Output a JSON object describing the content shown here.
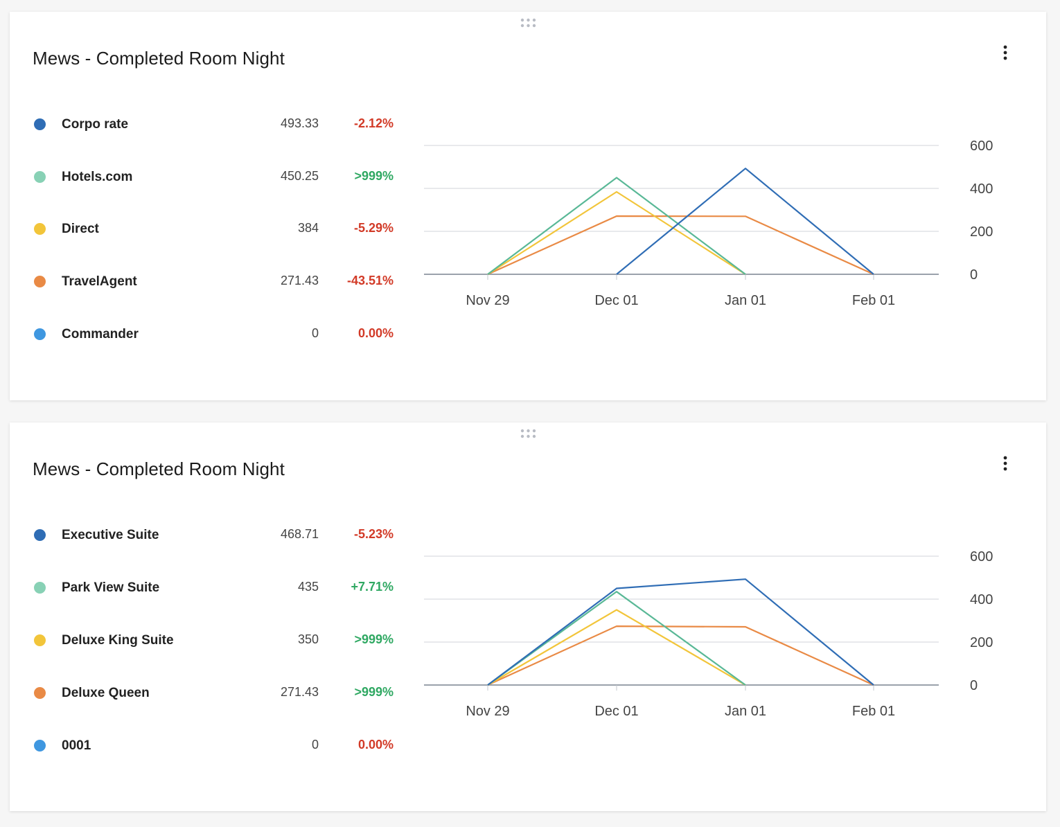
{
  "cards": [
    {
      "title": "Mews - Completed Room Night",
      "legend": [
        {
          "name": "Corpo rate",
          "value": "493.33",
          "change": "-2.12%",
          "trend": "neg",
          "color": "#2f6db5"
        },
        {
          "name": "Hotels.com",
          "value": "450.25",
          "change": ">999%",
          "trend": "pos",
          "color": "#88d1b5"
        },
        {
          "name": "Direct",
          "value": "384",
          "change": "-5.29%",
          "trend": "neg",
          "color": "#f2c53a"
        },
        {
          "name": "TravelAgent",
          "value": "271.43",
          "change": "-43.51%",
          "trend": "neg",
          "color": "#e98a45"
        },
        {
          "name": "Commander",
          "value": "0",
          "change": "0.00%",
          "trend": "neg",
          "color": "#3f97e0"
        }
      ],
      "chart_data": {
        "type": "line",
        "x": [
          "Nov 29",
          "Dec 01",
          "Jan 01",
          "Feb 01"
        ],
        "y_ticks": [
          "600",
          "400",
          "200",
          "0"
        ],
        "ylim": [
          0,
          600
        ],
        "grid": true,
        "y_axis_side": "right",
        "series": [
          {
            "name": "Corpo rate",
            "color": "#2f6db5",
            "values": [
              null,
              0,
              493,
              0
            ]
          },
          {
            "name": "Hotels.com",
            "color": "#59b896",
            "values": [
              0,
              450,
              0,
              null
            ]
          },
          {
            "name": "Direct",
            "color": "#f2c53a",
            "values": [
              0,
              384,
              0,
              null
            ]
          },
          {
            "name": "TravelAgent",
            "color": "#e98a45",
            "values": [
              0,
              271,
              270,
              0
            ]
          }
        ]
      }
    },
    {
      "title": "Mews - Completed Room Night",
      "legend": [
        {
          "name": "Executive Suite",
          "value": "468.71",
          "change": "-5.23%",
          "trend": "neg",
          "color": "#2f6db5"
        },
        {
          "name": "Park View Suite",
          "value": "435",
          "change": "+7.71%",
          "trend": "pos",
          "color": "#88d1b5"
        },
        {
          "name": "Deluxe King Suite",
          "value": "350",
          "change": ">999%",
          "trend": "pos",
          "color": "#f2c53a"
        },
        {
          "name": "Deluxe Queen",
          "value": "271.43",
          "change": ">999%",
          "trend": "pos",
          "color": "#e98a45"
        },
        {
          "name": "0001",
          "value": "0",
          "change": "0.00%",
          "trend": "neg",
          "color": "#3f97e0"
        }
      ],
      "chart_data": {
        "type": "line",
        "x": [
          "Nov 29",
          "Dec 01",
          "Jan 01",
          "Feb 01"
        ],
        "y_ticks": [
          "600",
          "400",
          "200",
          "0"
        ],
        "ylim": [
          0,
          600
        ],
        "grid": true,
        "y_axis_side": "right",
        "series": [
          {
            "name": "Executive Suite",
            "color": "#2f6db5",
            "values": [
              0,
              450,
              493,
              0
            ]
          },
          {
            "name": "Park View Suite",
            "color": "#59b896",
            "values": [
              0,
              435,
              0,
              null
            ]
          },
          {
            "name": "Deluxe King Suite",
            "color": "#f2c53a",
            "values": [
              0,
              350,
              0,
              null
            ]
          },
          {
            "name": "Deluxe Queen",
            "color": "#e98a45",
            "values": [
              0,
              274,
              271,
              0
            ]
          }
        ]
      }
    }
  ]
}
